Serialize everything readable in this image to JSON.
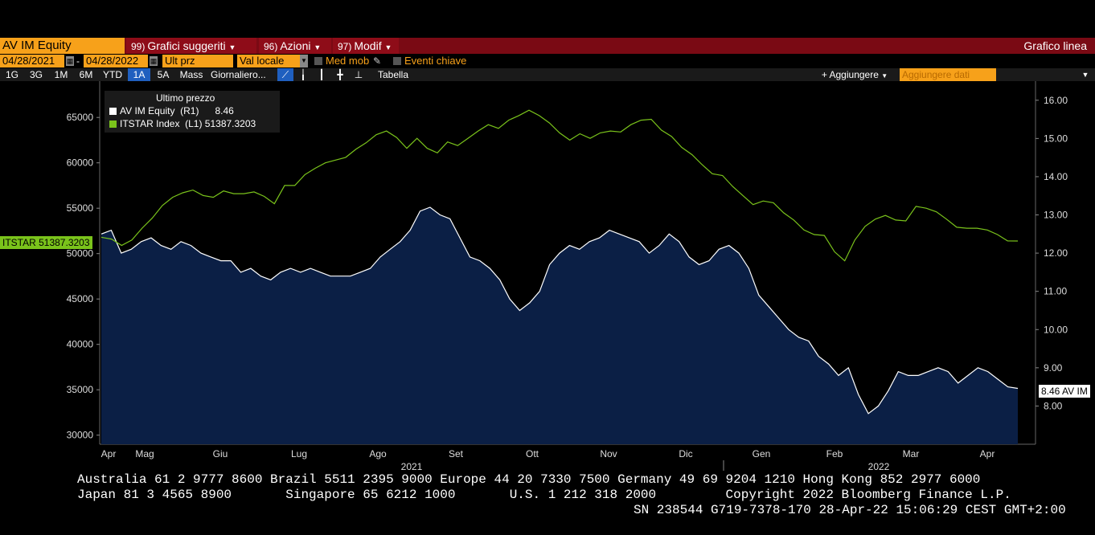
{
  "toolbar": {
    "ticker": "AV IM Equity",
    "menu1_num": "99)",
    "menu1": "Grafici suggeriti",
    "menu2_num": "96)",
    "menu2": "Azioni",
    "menu3_num": "97)",
    "menu3": "Modif",
    "chart_type": "Grafico linea"
  },
  "controls": {
    "start_date": "04/28/2021",
    "end_date": "04/28/2022",
    "price_field": "Ult prz",
    "currency": "Val locale",
    "moving_avg": "Med mob",
    "events": "Eventi chiave"
  },
  "periods": [
    "1G",
    "3G",
    "1M",
    "6M",
    "YTD",
    "1A",
    "5A",
    "Mass"
  ],
  "active_period": "1A",
  "frequency": "Giornaliero",
  "table_label": "Tabella",
  "add_button": "+ Aggiungere",
  "add_data_placeholder": "Aggiungere dati",
  "legend": {
    "title": "Ultimo prezzo",
    "row1": "AV IM Equity  (R1)      8.46",
    "row2": "ITSTAR Index  (L1) 51387.3203"
  },
  "tags": {
    "left": "ITSTAR 51387.3203",
    "right": "8.46 AV IM"
  },
  "colors": {
    "itstar": "#7ac31b",
    "av": "#ffffff",
    "area_fill": "#0b1f45",
    "accent": "#f7a11a",
    "bar": "#7a0a14"
  },
  "chart_data": {
    "type": "line",
    "x_labels": [
      "Apr",
      "Mag",
      "Giu",
      "Lug",
      "Ago",
      "Set",
      "Ott",
      "Nov",
      "Dic",
      "Gen",
      "Feb",
      "Mar",
      "Apr"
    ],
    "year_labels": [
      "2021",
      "2022"
    ],
    "left_axis": {
      "ticks": [
        30000,
        35000,
        40000,
        45000,
        50000,
        55000,
        60000,
        65000
      ],
      "range": [
        29000,
        69000
      ]
    },
    "right_axis": {
      "ticks": [
        "8.00",
        "9.00",
        "10.00",
        "11.00",
        "12.00",
        "13.00",
        "14.00",
        "15.00",
        "16.00"
      ],
      "range": [
        7.0,
        16.5
      ]
    },
    "series": [
      {
        "name": "AV IM Equity",
        "axis": "right",
        "values": [
          12.5,
          12.6,
          12.0,
          12.1,
          12.3,
          12.4,
          12.2,
          12.1,
          12.3,
          12.2,
          12.0,
          11.9,
          11.8,
          11.8,
          11.5,
          11.6,
          11.4,
          11.3,
          11.5,
          11.6,
          11.5,
          11.6,
          11.5,
          11.4,
          11.4,
          11.4,
          11.5,
          11.6,
          11.9,
          12.1,
          12.3,
          12.6,
          13.1,
          13.2,
          13.0,
          12.9,
          12.4,
          11.9,
          11.8,
          11.6,
          11.3,
          10.8,
          10.5,
          10.7,
          11.0,
          11.7,
          12.0,
          12.2,
          12.1,
          12.3,
          12.4,
          12.6,
          12.5,
          12.4,
          12.3,
          12.0,
          12.2,
          12.5,
          12.3,
          11.9,
          11.7,
          11.8,
          12.1,
          12.2,
          12.0,
          11.6,
          10.9,
          10.6,
          10.3,
          10.0,
          9.8,
          9.7,
          9.3,
          9.1,
          8.8,
          9.0,
          8.3,
          7.8,
          8.0,
          8.4,
          8.9,
          8.8,
          8.8,
          8.9,
          9.0,
          8.9,
          8.6,
          8.8,
          9.0,
          8.9,
          8.7,
          8.5,
          8.46
        ]
      },
      {
        "name": "ITSTAR Index",
        "axis": "left",
        "values": [
          51800,
          51600,
          50900,
          51500,
          52800,
          53900,
          55300,
          56200,
          56700,
          57000,
          56400,
          56200,
          56900,
          56600,
          56600,
          56800,
          56300,
          55500,
          57500,
          57500,
          58700,
          59400,
          60000,
          60300,
          60600,
          61500,
          62200,
          63100,
          63500,
          62800,
          61600,
          62700,
          61600,
          61100,
          62300,
          61900,
          62700,
          63500,
          64200,
          63800,
          64700,
          65200,
          65800,
          65200,
          64400,
          63300,
          62500,
          63200,
          62700,
          63300,
          63500,
          63400,
          64200,
          64700,
          64800,
          63600,
          62900,
          61700,
          60900,
          59800,
          58800,
          58600,
          57400,
          56400,
          55400,
          55800,
          55600,
          54500,
          53700,
          52600,
          52100,
          52000,
          50200,
          49200,
          51500,
          53000,
          53800,
          54200,
          53700,
          53600,
          55200,
          55000,
          54600,
          53800,
          52900,
          52800,
          52800,
          52600,
          52100,
          51400,
          51387
        ]
      }
    ]
  },
  "footer": {
    "line1": "Australia 61 2 9777 8600 Brazil 5511 2395 9000 Europe 44 20 7330 7500 Germany 49 69 9204 1210 Hong Kong 852 2977 6000",
    "line2": "Japan 81 3 4565 8900       Singapore 65 6212 1000       U.S. 1 212 318 2000         Copyright 2022 Bloomberg Finance L.P.",
    "line3": "SN 238544 G719-7378-170 28-Apr-22 15:06:29 CEST GMT+2:00"
  }
}
